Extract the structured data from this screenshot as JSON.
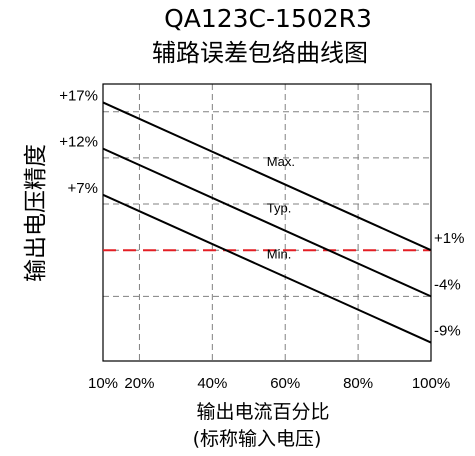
{
  "chart_data": {
    "type": "line",
    "title": "QA123C-1502R3",
    "subtitle": "辅路误差包络曲线图",
    "xlabel": "输出电流百分比",
    "xlabel_note": "(标称输入电压)",
    "ylabel": "输出电压精度",
    "xlim": [
      10,
      100
    ],
    "ylim": [
      -11,
      19
    ],
    "x_ticks": [
      {
        "value": 10,
        "label": "10%"
      },
      {
        "value": 20,
        "label": "20%"
      },
      {
        "value": 40,
        "label": "40%"
      },
      {
        "value": 60,
        "label": "60%"
      },
      {
        "value": 80,
        "label": "80%"
      },
      {
        "value": 100,
        "label": "100%"
      }
    ],
    "y_gridlines": [
      16,
      11,
      6,
      1,
      -4
    ],
    "grid": true,
    "series": [
      {
        "name": "Max.",
        "x": [
          10,
          100
        ],
        "y": [
          17,
          1
        ],
        "start_label": "+17%",
        "end_label": "+1%"
      },
      {
        "name": "Typ.",
        "x": [
          10,
          100
        ],
        "y": [
          12,
          -4
        ],
        "start_label": "+12%",
        "end_label": "-4%"
      },
      {
        "name": "Min.",
        "x": [
          10,
          100
        ],
        "y": [
          7,
          -9
        ],
        "start_label": "+7%",
        "end_label": "-9%"
      }
    ],
    "reference_line": {
      "y": 1,
      "color": "#e31e24",
      "style": "dashed"
    },
    "colors": {
      "series": "#000000",
      "grid": "#808080",
      "frame": "#000000",
      "reference": "#e31e24"
    }
  }
}
